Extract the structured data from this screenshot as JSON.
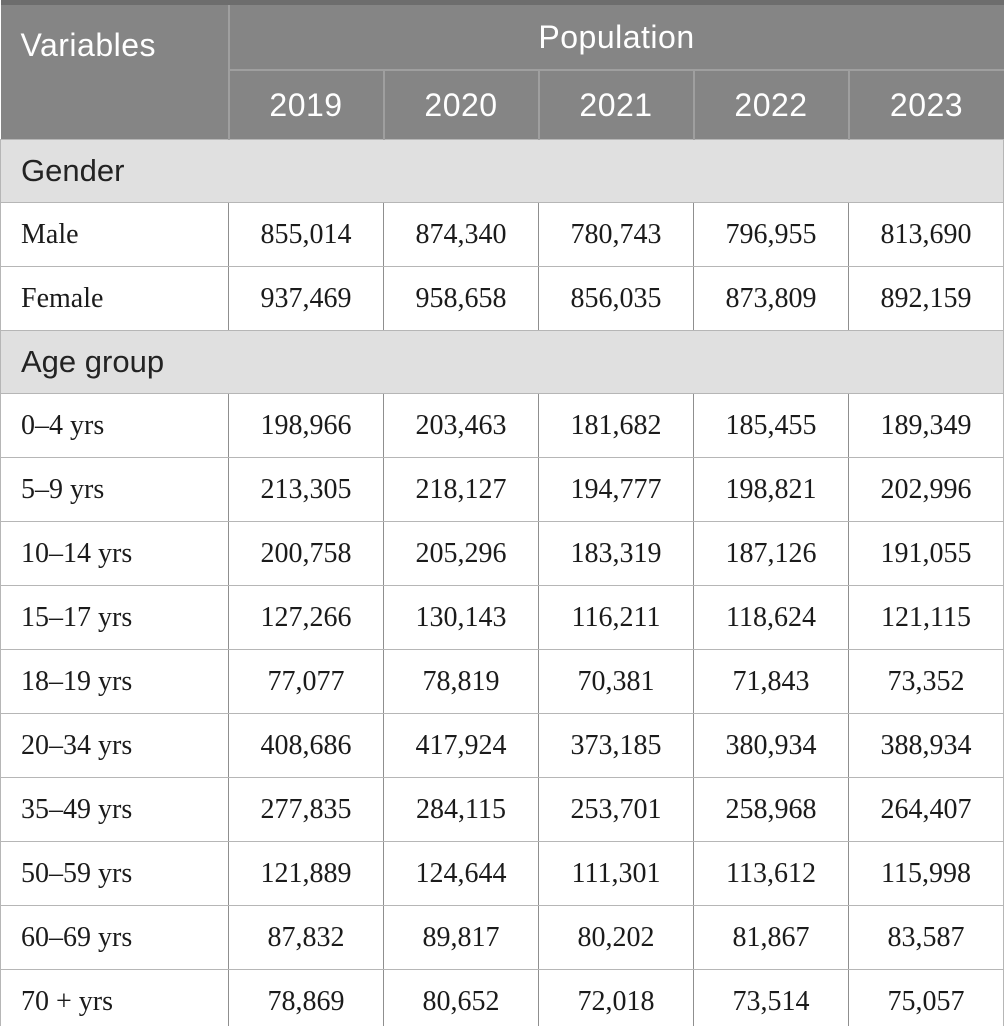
{
  "table": {
    "header": {
      "variables_label": "Variables",
      "population_label": "Population",
      "years": [
        "2019",
        "2020",
        "2021",
        "2022",
        "2023"
      ]
    },
    "sections": [
      {
        "title": "Gender",
        "rows": [
          {
            "label": "Male",
            "values": [
              "855,014",
              "874,340",
              "780,743",
              "796,955",
              "813,690"
            ]
          },
          {
            "label": "Female",
            "values": [
              "937,469",
              "958,658",
              "856,035",
              "873,809",
              "892,159"
            ]
          }
        ]
      },
      {
        "title": "Age group",
        "rows": [
          {
            "label": "0–4 yrs",
            "values": [
              "198,966",
              "203,463",
              "181,682",
              "185,455",
              "189,349"
            ]
          },
          {
            "label": "5–9 yrs",
            "values": [
              "213,305",
              "218,127",
              "194,777",
              "198,821",
              "202,996"
            ]
          },
          {
            "label": "10–14 yrs",
            "values": [
              "200,758",
              "205,296",
              "183,319",
              "187,126",
              "191,055"
            ]
          },
          {
            "label": "15–17 yrs",
            "values": [
              "127,266",
              "130,143",
              "116,211",
              "118,624",
              "121,115"
            ]
          },
          {
            "label": "18–19 yrs",
            "values": [
              "77,077",
              "78,819",
              "70,381",
              "71,843",
              "73,352"
            ]
          },
          {
            "label": "20–34 yrs",
            "values": [
              "408,686",
              "417,924",
              "373,185",
              "380,934",
              "388,934"
            ]
          },
          {
            "label": "35–49 yrs",
            "values": [
              "277,835",
              "284,115",
              "253,701",
              "258,968",
              "264,407"
            ]
          },
          {
            "label": "50–59 yrs",
            "values": [
              "121,889",
              "124,644",
              "111,301",
              "113,612",
              "115,998"
            ]
          },
          {
            "label": "60–69 yrs",
            "values": [
              "87,832",
              "89,817",
              "80,202",
              "81,867",
              "83,587"
            ]
          },
          {
            "label": "70 + yrs",
            "values": [
              "78,869",
              "80,652",
              "72,018",
              "73,514",
              "75,057"
            ]
          }
        ]
      }
    ],
    "colors": {
      "header_background": "#858585",
      "header_top_strip": "#6d6d6d",
      "header_divider": "#9f9f9f",
      "header_text": "#ffffff",
      "section_background": "#e0e0e0",
      "cell_border_vertical": "#8f8f8f",
      "cell_border_horizontal": "#b6b6b6",
      "body_text": "#1b1b1b"
    }
  },
  "chart_data": {
    "type": "table",
    "title": "Population by variables, 2019–2023",
    "column_group_header": "Population",
    "columns": [
      "Variables",
      "2019",
      "2020",
      "2021",
      "2022",
      "2023"
    ],
    "sections": [
      {
        "name": "Gender",
        "rows": [
          [
            "Male",
            855014,
            874340,
            780743,
            796955,
            813690
          ],
          [
            "Female",
            937469,
            958658,
            856035,
            873809,
            892159
          ]
        ]
      },
      {
        "name": "Age group",
        "rows": [
          [
            "0–4 yrs",
            198966,
            203463,
            181682,
            185455,
            189349
          ],
          [
            "5–9 yrs",
            213305,
            218127,
            194777,
            198821,
            202996
          ],
          [
            "10–14 yrs",
            200758,
            205296,
            183319,
            187126,
            191055
          ],
          [
            "15–17 yrs",
            127266,
            130143,
            116211,
            118624,
            121115
          ],
          [
            "18–19 yrs",
            77077,
            78819,
            70381,
            71843,
            73352
          ],
          [
            "20–34 yrs",
            408686,
            417924,
            373185,
            380934,
            388934
          ],
          [
            "35–49 yrs",
            277835,
            284115,
            253701,
            258968,
            264407
          ],
          [
            "50–59 yrs",
            121889,
            124644,
            111301,
            113612,
            115998
          ],
          [
            "60–69 yrs",
            87832,
            89817,
            80202,
            81867,
            83587
          ],
          [
            "70 + yrs",
            78869,
            80652,
            72018,
            73514,
            75057
          ]
        ]
      }
    ]
  }
}
